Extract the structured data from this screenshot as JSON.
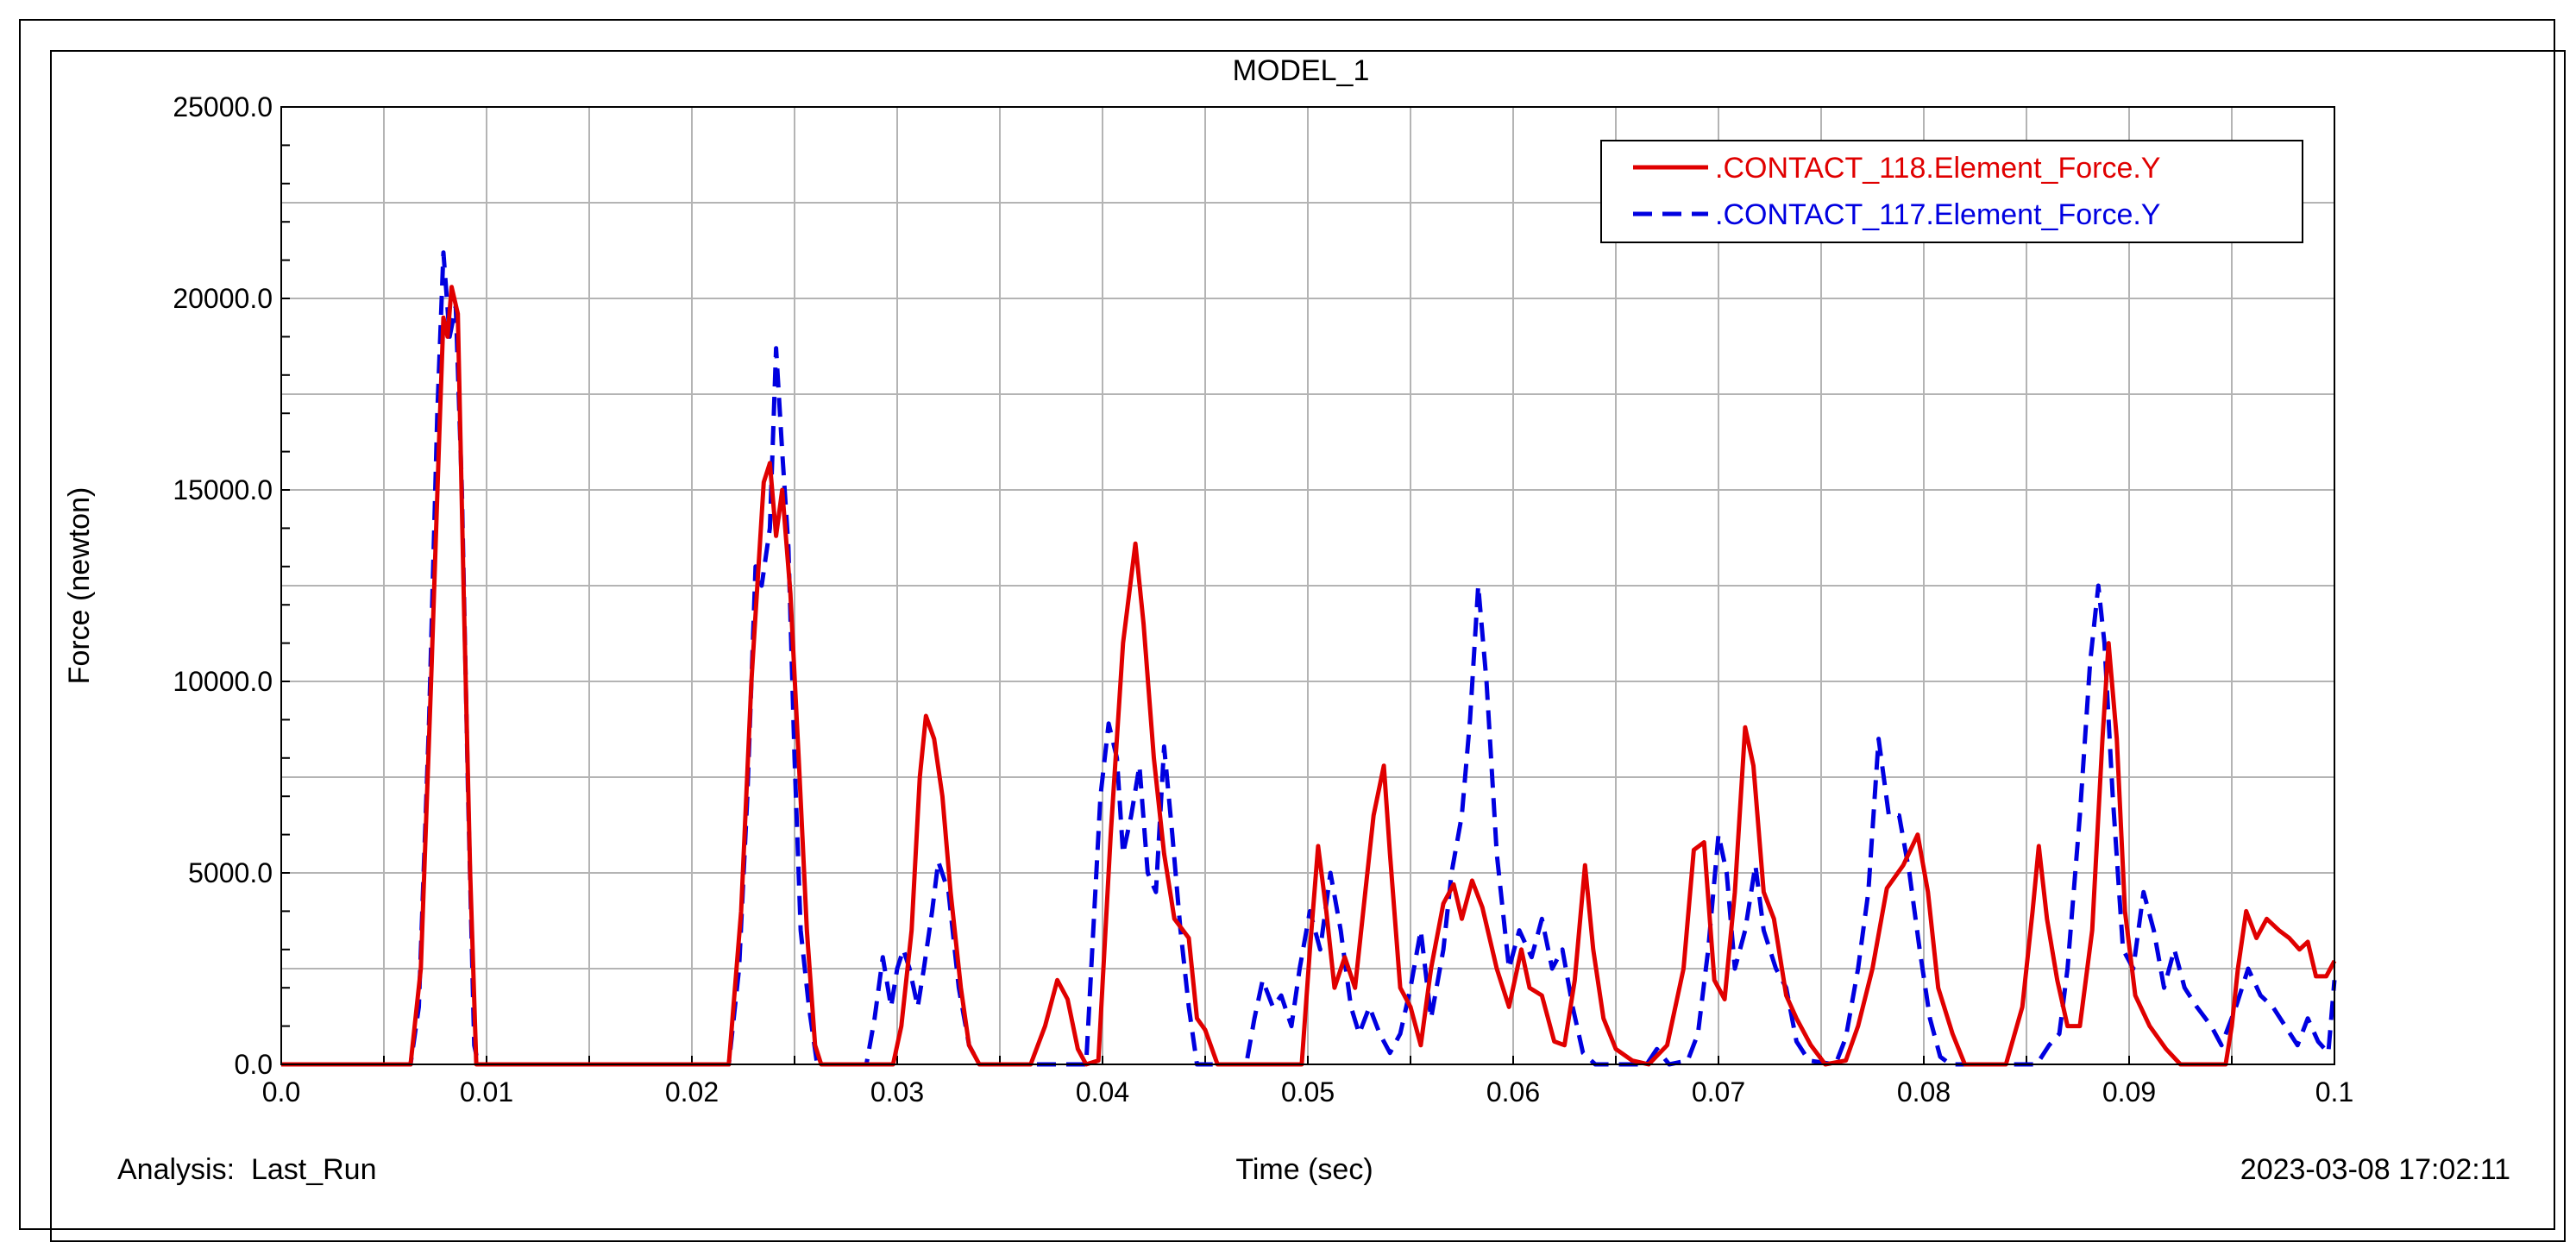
{
  "chart_data": {
    "type": "line",
    "title": "MODEL_1",
    "xlabel": "Time (sec)",
    "ylabel": "Force (newton)",
    "xlim": [
      0.0,
      0.1
    ],
    "ylim": [
      0.0,
      25000.0
    ],
    "x_ticks": [
      "0.0",
      "0.01",
      "0.02",
      "0.03",
      "0.04",
      "0.05",
      "0.06",
      "0.07",
      "0.08",
      "0.09",
      "0.1"
    ],
    "y_ticks": [
      "0.0",
      "5000.0",
      "10000.0",
      "15000.0",
      "20000.0",
      "25000.0"
    ],
    "grid": true,
    "legend_position": "top-right",
    "footer_left": "Analysis:  Last_Run",
    "footer_right": "2023-03-08 17:02:11",
    "series": [
      {
        "name": ".CONTACT_118.Element_Force.Y",
        "color": "#e00000",
        "style": "solid",
        "points": [
          [
            0.0,
            0
          ],
          [
            0.0063,
            0
          ],
          [
            0.0068,
            2500
          ],
          [
            0.0073,
            10000
          ],
          [
            0.0077,
            16500
          ],
          [
            0.0079,
            19500
          ],
          [
            0.0081,
            19000
          ],
          [
            0.0083,
            20300
          ],
          [
            0.0086,
            19600
          ],
          [
            0.0089,
            12000
          ],
          [
            0.0092,
            5000
          ],
          [
            0.0095,
            0
          ],
          [
            0.0218,
            0
          ],
          [
            0.0224,
            4000
          ],
          [
            0.0229,
            10000
          ],
          [
            0.0235,
            15200
          ],
          [
            0.0238,
            15700
          ],
          [
            0.0241,
            13800
          ],
          [
            0.0244,
            15000
          ],
          [
            0.0248,
            12300
          ],
          [
            0.0252,
            8000
          ],
          [
            0.0256,
            3500
          ],
          [
            0.026,
            500
          ],
          [
            0.0263,
            0
          ],
          [
            0.0298,
            0
          ],
          [
            0.0302,
            1000
          ],
          [
            0.0307,
            3500
          ],
          [
            0.0311,
            7500
          ],
          [
            0.0314,
            9100
          ],
          [
            0.0318,
            8500
          ],
          [
            0.0322,
            7000
          ],
          [
            0.0326,
            4500
          ],
          [
            0.0331,
            2000
          ],
          [
            0.0335,
            500
          ],
          [
            0.034,
            0
          ],
          [
            0.0365,
            0
          ],
          [
            0.0372,
            1000
          ],
          [
            0.0378,
            2200
          ],
          [
            0.0383,
            1700
          ],
          [
            0.0388,
            400
          ],
          [
            0.0392,
            0
          ],
          [
            0.0398,
            100
          ],
          [
            0.0404,
            6000
          ],
          [
            0.041,
            11000
          ],
          [
            0.0416,
            13600
          ],
          [
            0.042,
            11500
          ],
          [
            0.0425,
            8000
          ],
          [
            0.043,
            5500
          ],
          [
            0.0435,
            3800
          ],
          [
            0.0442,
            3300
          ],
          [
            0.0446,
            1200
          ],
          [
            0.045,
            900
          ],
          [
            0.0456,
            0
          ],
          [
            0.0497,
            0
          ],
          [
            0.0501,
            3000
          ],
          [
            0.0505,
            5700
          ],
          [
            0.0509,
            4000
          ],
          [
            0.0513,
            2000
          ],
          [
            0.0518,
            2800
          ],
          [
            0.0523,
            2000
          ],
          [
            0.0528,
            4500
          ],
          [
            0.0532,
            6500
          ],
          [
            0.0537,
            7800
          ],
          [
            0.054,
            5500
          ],
          [
            0.0545,
            2000
          ],
          [
            0.055,
            1500
          ],
          [
            0.0555,
            500
          ],
          [
            0.056,
            2500
          ],
          [
            0.0566,
            4200
          ],
          [
            0.0571,
            4700
          ],
          [
            0.0575,
            3800
          ],
          [
            0.058,
            4800
          ],
          [
            0.0585,
            4100
          ],
          [
            0.0592,
            2500
          ],
          [
            0.0598,
            1500
          ],
          [
            0.0604,
            3000
          ],
          [
            0.0608,
            2000
          ],
          [
            0.0614,
            1800
          ],
          [
            0.062,
            600
          ],
          [
            0.0625,
            500
          ],
          [
            0.063,
            2200
          ],
          [
            0.0635,
            5200
          ],
          [
            0.0639,
            3000
          ],
          [
            0.0644,
            1200
          ],
          [
            0.065,
            400
          ],
          [
            0.0658,
            100
          ],
          [
            0.0666,
            0
          ],
          [
            0.0675,
            500
          ],
          [
            0.0683,
            2500
          ],
          [
            0.0688,
            5600
          ],
          [
            0.0693,
            5800
          ],
          [
            0.0698,
            2200
          ],
          [
            0.0703,
            1700
          ],
          [
            0.0708,
            4500
          ],
          [
            0.0713,
            8800
          ],
          [
            0.0717,
            7800
          ],
          [
            0.0722,
            4500
          ],
          [
            0.0727,
            3800
          ],
          [
            0.0733,
            1800
          ],
          [
            0.0738,
            1200
          ],
          [
            0.0745,
            500
          ],
          [
            0.0752,
            0
          ],
          [
            0.0762,
            100
          ],
          [
            0.0768,
            1000
          ],
          [
            0.0775,
            2500
          ],
          [
            0.0782,
            4600
          ],
          [
            0.079,
            5200
          ],
          [
            0.0797,
            6000
          ],
          [
            0.0802,
            4500
          ],
          [
            0.0807,
            2000
          ],
          [
            0.0814,
            800
          ],
          [
            0.082,
            0
          ],
          [
            0.084,
            0
          ],
          [
            0.0848,
            1500
          ],
          [
            0.0853,
            4000
          ],
          [
            0.0856,
            5700
          ],
          [
            0.086,
            3800
          ],
          [
            0.0865,
            2200
          ],
          [
            0.087,
            1000
          ],
          [
            0.0876,
            1000
          ],
          [
            0.0882,
            3500
          ],
          [
            0.0887,
            8500
          ],
          [
            0.089,
            11000
          ],
          [
            0.0894,
            8500
          ],
          [
            0.0898,
            4000
          ],
          [
            0.0903,
            1800
          ],
          [
            0.091,
            1000
          ],
          [
            0.0918,
            400
          ],
          [
            0.0925,
            0
          ],
          [
            0.0947,
            0
          ],
          [
            0.095,
            1000
          ],
          [
            0.0953,
            2500
          ],
          [
            0.0957,
            4000
          ],
          [
            0.0962,
            3300
          ],
          [
            0.0967,
            3800
          ],
          [
            0.0973,
            3500
          ],
          [
            0.0978,
            3300
          ],
          [
            0.0983,
            3000
          ],
          [
            0.0987,
            3200
          ],
          [
            0.0991,
            2300
          ],
          [
            0.0996,
            2300
          ],
          [
            0.1,
            2700
          ]
        ]
      },
      {
        "name": ".CONTACT_117.Element_Force.Y",
        "color": "#0000e0",
        "style": "dashed",
        "points": [
          [
            0.0,
            0
          ],
          [
            0.0063,
            0
          ],
          [
            0.0067,
            1500
          ],
          [
            0.0072,
            9000
          ],
          [
            0.0076,
            17000
          ],
          [
            0.0079,
            21200
          ],
          [
            0.0082,
            19000
          ],
          [
            0.0085,
            19800
          ],
          [
            0.0088,
            15000
          ],
          [
            0.0091,
            7000
          ],
          [
            0.0094,
            500
          ],
          [
            0.0096,
            0
          ],
          [
            0.0218,
            0
          ],
          [
            0.0223,
            2500
          ],
          [
            0.0227,
            7000
          ],
          [
            0.0231,
            13000
          ],
          [
            0.0234,
            12500
          ],
          [
            0.0238,
            14000
          ],
          [
            0.0241,
            18700
          ],
          [
            0.0244,
            16000
          ],
          [
            0.0247,
            13500
          ],
          [
            0.025,
            8000
          ],
          [
            0.0253,
            3500
          ],
          [
            0.0257,
            1500
          ],
          [
            0.0261,
            0
          ],
          [
            0.0285,
            0
          ],
          [
            0.0289,
            1200
          ],
          [
            0.0293,
            2800
          ],
          [
            0.0297,
            1500
          ],
          [
            0.03,
            2500
          ],
          [
            0.0303,
            3000
          ],
          [
            0.0306,
            2500
          ],
          [
            0.031,
            1500
          ],
          [
            0.0313,
            2500
          ],
          [
            0.0317,
            4000
          ],
          [
            0.032,
            5300
          ],
          [
            0.0325,
            4500
          ],
          [
            0.033,
            2000
          ],
          [
            0.0335,
            500
          ],
          [
            0.034,
            0
          ],
          [
            0.0392,
            0
          ],
          [
            0.0395,
            3000
          ],
          [
            0.0399,
            7000
          ],
          [
            0.0403,
            8900
          ],
          [
            0.0407,
            8000
          ],
          [
            0.041,
            5500
          ],
          [
            0.0414,
            6500
          ],
          [
            0.0418,
            7800
          ],
          [
            0.0422,
            5000
          ],
          [
            0.0426,
            4500
          ],
          [
            0.043,
            8300
          ],
          [
            0.0434,
            6000
          ],
          [
            0.0438,
            3500
          ],
          [
            0.0442,
            1500
          ],
          [
            0.0446,
            0
          ],
          [
            0.047,
            0
          ],
          [
            0.0474,
            1200
          ],
          [
            0.0478,
            2200
          ],
          [
            0.0483,
            1500
          ],
          [
            0.0487,
            1800
          ],
          [
            0.0492,
            1000
          ],
          [
            0.0496,
            2500
          ],
          [
            0.0501,
            4000
          ],
          [
            0.0506,
            3000
          ],
          [
            0.0511,
            5000
          ],
          [
            0.0516,
            3500
          ],
          [
            0.0521,
            1500
          ],
          [
            0.0525,
            800
          ],
          [
            0.053,
            1500
          ],
          [
            0.0535,
            800
          ],
          [
            0.054,
            300
          ],
          [
            0.0545,
            800
          ],
          [
            0.055,
            2000
          ],
          [
            0.0555,
            3500
          ],
          [
            0.056,
            1200
          ],
          [
            0.0566,
            3000
          ],
          [
            0.057,
            5000
          ],
          [
            0.0575,
            6500
          ],
          [
            0.0579,
            9000
          ],
          [
            0.0583,
            12500
          ],
          [
            0.0587,
            10000
          ],
          [
            0.0592,
            5500
          ],
          [
            0.0598,
            2500
          ],
          [
            0.0603,
            3500
          ],
          [
            0.0609,
            2800
          ],
          [
            0.0614,
            3800
          ],
          [
            0.0619,
            2500
          ],
          [
            0.0624,
            3000
          ],
          [
            0.0629,
            1500
          ],
          [
            0.0634,
            300
          ],
          [
            0.064,
            0
          ],
          [
            0.0665,
            0
          ],
          [
            0.067,
            400
          ],
          [
            0.0676,
            0
          ],
          [
            0.0685,
            100
          ],
          [
            0.069,
            800
          ],
          [
            0.0695,
            3000
          ],
          [
            0.07,
            6000
          ],
          [
            0.0704,
            5000
          ],
          [
            0.0708,
            2500
          ],
          [
            0.0713,
            3500
          ],
          [
            0.0718,
            5200
          ],
          [
            0.0722,
            3500
          ],
          [
            0.0728,
            2500
          ],
          [
            0.0733,
            2000
          ],
          [
            0.0738,
            600
          ],
          [
            0.0744,
            100
          ],
          [
            0.0757,
            0
          ],
          [
            0.0762,
            700
          ],
          [
            0.0768,
            2500
          ],
          [
            0.0773,
            4500
          ],
          [
            0.0778,
            8500
          ],
          [
            0.0783,
            6500
          ],
          [
            0.0788,
            6500
          ],
          [
            0.0793,
            5000
          ],
          [
            0.0798,
            3000
          ],
          [
            0.0803,
            1200
          ],
          [
            0.0808,
            200
          ],
          [
            0.0813,
            0
          ],
          [
            0.0855,
            0
          ],
          [
            0.0861,
            500
          ],
          [
            0.0866,
            800
          ],
          [
            0.087,
            2500
          ],
          [
            0.0876,
            6500
          ],
          [
            0.0881,
            10500
          ],
          [
            0.0885,
            12500
          ],
          [
            0.0888,
            11000
          ],
          [
            0.0892,
            7000
          ],
          [
            0.0897,
            3000
          ],
          [
            0.0902,
            2500
          ],
          [
            0.0907,
            4500
          ],
          [
            0.0912,
            3500
          ],
          [
            0.0917,
            2000
          ],
          [
            0.0922,
            3000
          ],
          [
            0.0927,
            2000
          ],
          [
            0.0933,
            1500
          ],
          [
            0.094,
            1000
          ],
          [
            0.0945,
            500
          ],
          [
            0.0952,
            1500
          ],
          [
            0.0958,
            2500
          ],
          [
            0.0964,
            1800
          ],
          [
            0.097,
            1500
          ],
          [
            0.0976,
            1000
          ],
          [
            0.0982,
            500
          ],
          [
            0.0987,
            1200
          ],
          [
            0.0992,
            600
          ],
          [
            0.0997,
            300
          ],
          [
            0.1,
            2200
          ]
        ]
      }
    ]
  }
}
